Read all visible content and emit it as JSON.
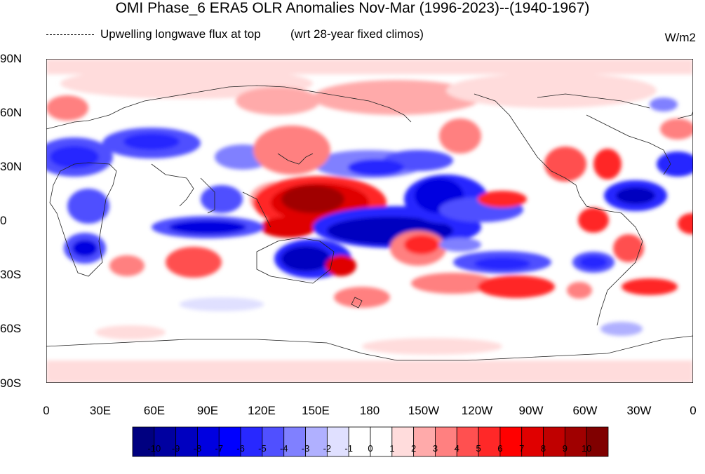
{
  "title": "OMI Phase_6 ERA5 OLR Anomalies Nov-Mar (1996-2023)--(1940-1967)",
  "subtitle_left": "Upwelling longwave flux at top",
  "subtitle_right": "(wrt 28-year fixed climos)",
  "units": "W/m2",
  "y_axis_labels": [
    "90N",
    "60N",
    "30N",
    "0",
    "30S",
    "60S",
    "90S"
  ],
  "x_axis_labels": [
    "0",
    "30E",
    "60E",
    "90E",
    "120E",
    "150E",
    "180",
    "150W",
    "120W",
    "90W",
    "60W",
    "30W",
    "0"
  ],
  "colorbar": {
    "labels": [
      "-10",
      "-9",
      "-8",
      "-7",
      "-6",
      "-5",
      "-4",
      "-3",
      "-2",
      "-1",
      "0",
      "1",
      "2",
      "3",
      "4",
      "5",
      "6",
      "7",
      "8",
      "9",
      "10"
    ],
    "colors": [
      "#000080",
      "#0000a0",
      "#0000c0",
      "#0000e0",
      "#0000ff",
      "#2828ff",
      "#5050ff",
      "#8080ff",
      "#b0b0ff",
      "#e0e0ff",
      "#ffffff",
      "#ffffff",
      "#ffdcdc",
      "#ffaaaa",
      "#ff8080",
      "#ff5050",
      "#ff2828",
      "#ff0000",
      "#e00000",
      "#c00000",
      "#a00000",
      "#800000"
    ]
  },
  "map": {
    "projection": "cylindrical-equidistant",
    "lon_range": [
      0,
      360
    ],
    "lat_range": [
      -90,
      90
    ]
  }
}
